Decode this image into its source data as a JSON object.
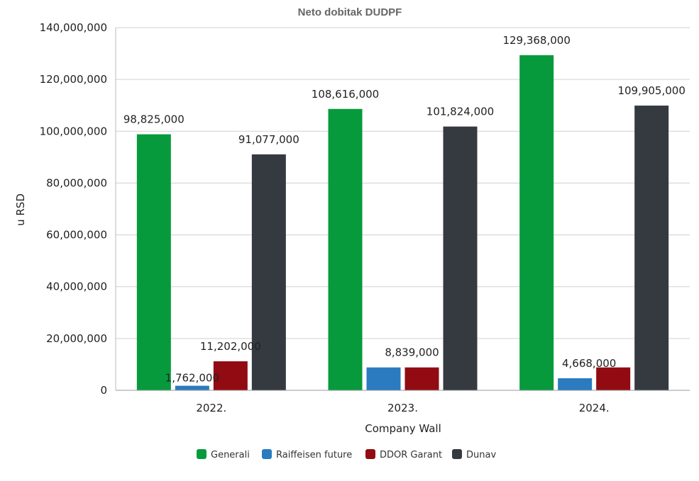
{
  "chart_data": {
    "type": "bar",
    "title": "Neto dobitak DUDPF",
    "xlabel": "Company Wall",
    "ylabel": "u  RSD",
    "categories": [
      "2022.",
      "2023.",
      "2024."
    ],
    "ylim": [
      0,
      140000000
    ],
    "yticks": [
      0,
      20000000,
      40000000,
      60000000,
      80000000,
      100000000,
      120000000,
      140000000
    ],
    "ytick_labels": [
      "0",
      "20,000,000",
      "40,000,000",
      "60,000,000",
      "80,000,000",
      "100,000,000",
      "120,000,000",
      "140,000,000"
    ],
    "grid": true,
    "legend_position": "bottom",
    "series": [
      {
        "name": "Generali",
        "color": "#079a3d",
        "values": [
          98825000,
          108616000,
          129368000
        ],
        "labels": [
          "98,825,000",
          "108,616,000",
          "129,368,000"
        ]
      },
      {
        "name": "Raiffeisen future",
        "color": "#2a7bc0",
        "values": [
          1762000,
          8839000,
          4668000
        ],
        "labels": [
          "1,762,000",
          "8,839,000",
          "4,668,000"
        ]
      },
      {
        "name": "DDOR Garant",
        "color": "#920b12",
        "values": [
          11202000,
          8839000,
          8839000
        ],
        "labels": [
          "11,202,000",
          "",
          ""
        ]
      },
      {
        "name": "Dunav",
        "color": "#353a41",
        "values": [
          91077000,
          101824000,
          109905000
        ],
        "labels": [
          "91,077,000",
          "101,824,000",
          "109,905,000"
        ]
      }
    ]
  }
}
